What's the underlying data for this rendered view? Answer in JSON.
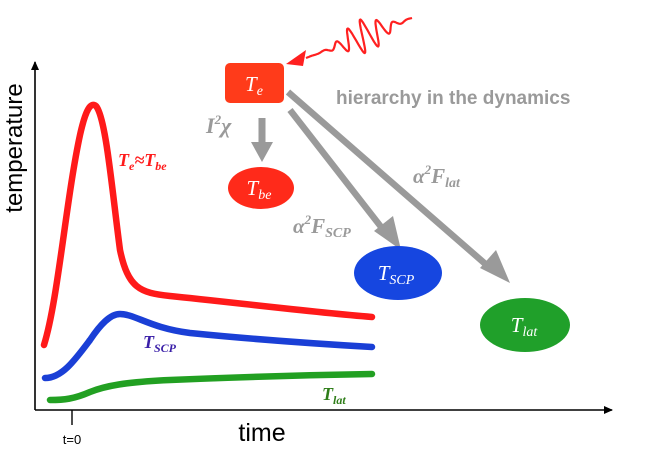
{
  "axes": {
    "ylabel": "temperature",
    "xlabel": "time",
    "t0_label": "t=0"
  },
  "curves": {
    "electron": {
      "label_main": "T",
      "label_sub": "e",
      "label_rel": "≈",
      "label_main2": "T",
      "label_sub2": "be",
      "color": "#ff1a1a"
    },
    "scp": {
      "label_main": "T",
      "label_sub": "SCP",
      "color": "#1a3fd6",
      "label_color": "#3a1fa8"
    },
    "lattice": {
      "label_main": "T",
      "label_sub": "lat",
      "color": "#22a022",
      "label_color": "#2e7d18"
    }
  },
  "nodes": {
    "te": {
      "main": "T",
      "sub": "e",
      "color": "#ff3b1a"
    },
    "tbe": {
      "main": "T",
      "sub": "be",
      "color": "#ff2a1a"
    },
    "tscp": {
      "main": "T",
      "sub": "SCP",
      "color": "#1646e0"
    },
    "tlat": {
      "main": "T",
      "sub": "lat",
      "color": "#20a02a"
    }
  },
  "couplings": {
    "i2chi": {
      "main": "I",
      "sup": "2",
      "rest": "χ"
    },
    "a2fscp": {
      "main": "α",
      "sup": "2",
      "rest": "F",
      "sub": "SCP"
    },
    "a2flat": {
      "main": "α",
      "sup": "2",
      "rest": "F",
      "sub": "lat"
    }
  },
  "hierarchy_label": "hierarchy in the dynamics",
  "colors": {
    "arrow_gray": "#9a9a9a",
    "laser_red": "#ff2020",
    "axis": "#000000"
  }
}
